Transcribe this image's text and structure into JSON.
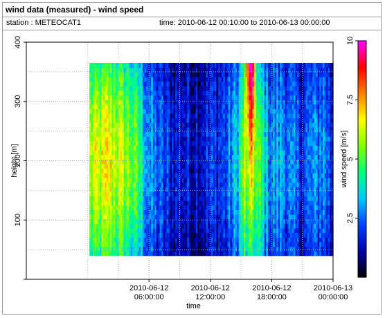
{
  "header": {
    "title": "wind data (measured) - wind speed",
    "station": "station : METEOCAT1",
    "time_range": "time: 2010-06-12 00:10:00 to 2010-06-13 00:00:00"
  },
  "chart_data": {
    "type": "heatmap",
    "xlabel": "time",
    "ylabel": "height [m]",
    "colorbar_label": "wind speed [m/s]",
    "xlim": [
      -6,
      24
    ],
    "ylim": [
      0,
      400
    ],
    "x_ticks": [
      {
        "x": 6,
        "date": "2010-06-12",
        "time": "06:00:00"
      },
      {
        "x": 12,
        "date": "2010-06-12",
        "time": "12:00:00"
      },
      {
        "x": 18,
        "date": "2010-06-12",
        "time": "18:00:00"
      },
      {
        "x": 24,
        "date": "2010-06-13",
        "time": "00:00:00"
      }
    ],
    "y_ticks": [
      100,
      200,
      300,
      400
    ],
    "colorbar_ticks": [
      "2.5",
      "5",
      "7.5",
      "10"
    ],
    "colorbar_range": [
      0,
      10
    ],
    "colormap": [
      "#000000",
      "#0000aa",
      "#0040ff",
      "#00c8ff",
      "#00ff80",
      "#80ff00",
      "#ffff00",
      "#ff8000",
      "#ff0000",
      "#ff00ff"
    ],
    "height_levels_m": [
      40,
      365
    ],
    "time_start_hours": 0.17,
    "time_end_hours": 24,
    "speed_profile": [
      {
        "t": 0.0,
        "ws": 5.0
      },
      {
        "t": 1.0,
        "ws": 5.2
      },
      {
        "t": 2.0,
        "ws": 5.7
      },
      {
        "t": 3.0,
        "ws": 5.3
      },
      {
        "t": 4.0,
        "ws": 4.8
      },
      {
        "t": 5.0,
        "ws": 4.0
      },
      {
        "t": 6.0,
        "ws": 2.5
      },
      {
        "t": 7.0,
        "ws": 2.0
      },
      {
        "t": 8.0,
        "ws": 1.5
      },
      {
        "t": 10.0,
        "ws": 1.3
      },
      {
        "t": 12.0,
        "ws": 1.6
      },
      {
        "t": 13.5,
        "ws": 1.9
      },
      {
        "t": 14.5,
        "ws": 2.8
      },
      {
        "t": 15.0,
        "ws": 4.0
      },
      {
        "t": 15.6,
        "ws": 6.0
      },
      {
        "t": 16.0,
        "ws": 8.2
      },
      {
        "t": 16.5,
        "ws": 4.5
      },
      {
        "t": 17.0,
        "ws": 3.8
      },
      {
        "t": 18.0,
        "ws": 2.4
      },
      {
        "t": 19.0,
        "ws": 2.8
      },
      {
        "t": 20.0,
        "ws": 2.0
      },
      {
        "t": 21.0,
        "ws": 1.8
      },
      {
        "t": 22.0,
        "ws": 2.2
      },
      {
        "t": 23.0,
        "ws": 2.6
      },
      {
        "t": 24.0,
        "ws": 1.5
      }
    ]
  }
}
